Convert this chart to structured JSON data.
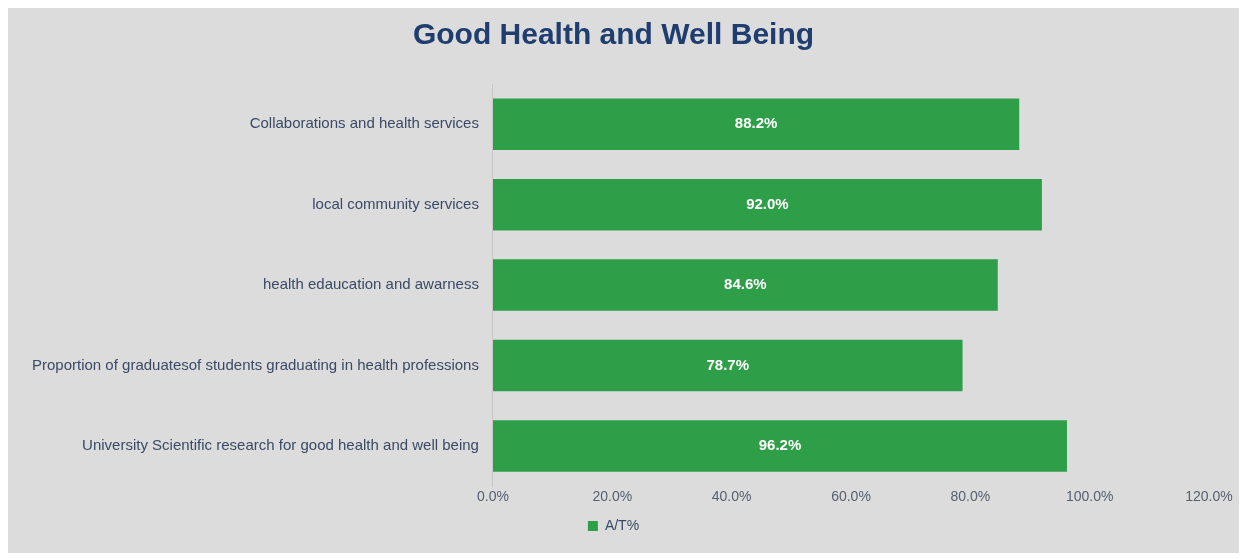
{
  "chart_data": {
    "type": "bar",
    "orientation": "horizontal",
    "title": "Good Health and Well Being",
    "categories": [
      "Collaborations and health services",
      "local community services",
      "health edaucation and awarness",
      "Proportion of graduatesof students graduating in health professions",
      "University Scientific research for good health and well being"
    ],
    "series": [
      {
        "name": "A/T%",
        "color": "#2e9e48",
        "values": [
          88.2,
          92.0,
          84.6,
          78.7,
          96.2
        ],
        "value_labels": [
          "88.2%",
          "92.0%",
          "84.6%",
          "78.7%",
          "96.2%"
        ]
      }
    ],
    "xlim": [
      0,
      120
    ],
    "xticks": [
      {
        "value": 0,
        "label": "0.0%"
      },
      {
        "value": 20,
        "label": "20.0%"
      },
      {
        "value": 40,
        "label": "40.0%"
      },
      {
        "value": 60,
        "label": "60.0%"
      },
      {
        "value": 80,
        "label": "80.0%"
      },
      {
        "value": 100,
        "label": "100.0%"
      },
      {
        "value": 120,
        "label": "120.0%"
      }
    ],
    "grid": false,
    "legend": "bottom"
  }
}
